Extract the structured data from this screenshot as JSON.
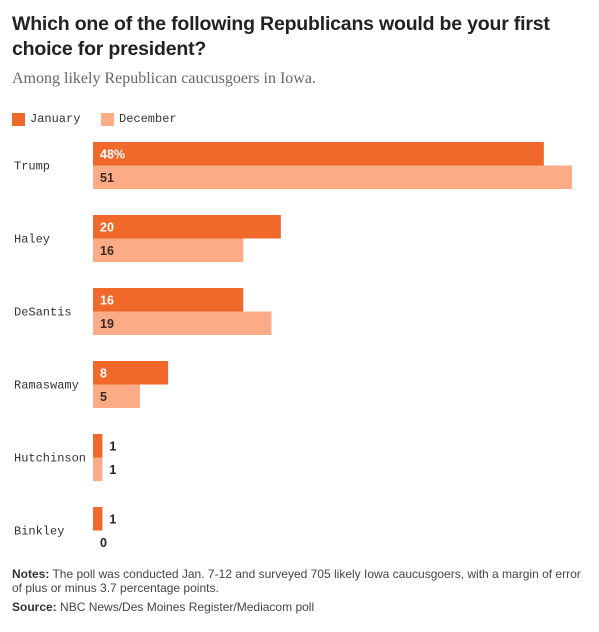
{
  "title": "Which one of the following Republicans would be your first choice for president?",
  "subtitle": "Among likely Republican caucusgoers in Iowa.",
  "notes_label": "Notes:",
  "notes_text": "The poll was conducted Jan. 7-12 and surveyed 705 likely Iowa caucusgoers, with a margin of error of plus or minus 3.7 percentage points.",
  "source_label": "Source:",
  "source_text": "NBC News/Des Moines Register/Mediacom poll",
  "chart_data": {
    "type": "bar",
    "orientation": "horizontal",
    "categories": [
      "Trump",
      "Haley",
      "DeSantis",
      "Ramaswamy",
      "Hutchinson",
      "Binkley"
    ],
    "series": [
      {
        "name": "January",
        "color": "#f0692a",
        "values": [
          48,
          20,
          16,
          8,
          1,
          1
        ],
        "labels": [
          "48%",
          "20",
          "16",
          "8",
          "1",
          "1"
        ]
      },
      {
        "name": "December",
        "color": "#fbab86",
        "values": [
          51,
          16,
          19,
          5,
          1,
          0
        ],
        "labels": [
          "51",
          "16",
          "19",
          "5",
          "1",
          "0"
        ]
      }
    ],
    "xlim": [
      0,
      51
    ],
    "legend_position": "top-left",
    "grid": false
  }
}
